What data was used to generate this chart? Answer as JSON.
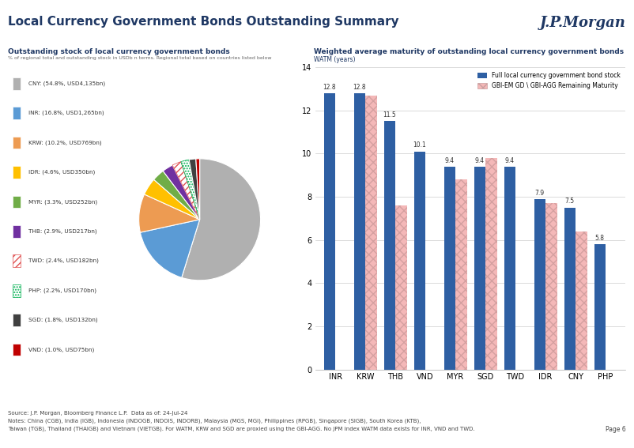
{
  "title": "Local Currency Government Bonds Outstanding Summary",
  "pie_title": "Outstanding stock of local currency government bonds",
  "pie_subtitle": "% of regional total and outstanding stock in USDb n terms. Regional total based on countries listed below",
  "bar_title": "Weighted average maturity of outstanding local currency government bonds",
  "bar_subtitle": "WATM (years)",
  "pie_labels": [
    "CNY: (54.8%, USD4,135bn)",
    "INR: (16.8%, USD1,265bn)",
    "KRW: (10.2%, USD769bn)",
    "IDR: (4.6%, USD350bn)",
    "MYR: (3.3%, USD252bn)",
    "THB: (2.9%, USD217bn)",
    "TWD: (2.4%, USD182bn)",
    "PHP: (2.2%, USD170bn)",
    "SGD: (1.8%, USD132bn)",
    "VND: (1.0%, USD75bn)"
  ],
  "pie_values": [
    54.8,
    16.8,
    10.2,
    4.6,
    3.3,
    2.9,
    2.4,
    2.2,
    1.8,
    1.0
  ],
  "pie_colors": [
    "#b0b0b0",
    "#5b9bd5",
    "#ed9b52",
    "#ffc000",
    "#70ad47",
    "#7030a0",
    "#ffffff",
    "#ffffff",
    "#404040",
    "#c00000"
  ],
  "pie_hatch_colors": [
    "#b0b0b0",
    "#5b9bd5",
    "#ed9b52",
    "#ffc000",
    "#70ad47",
    "#7030a0",
    "#e05050",
    "#00b050",
    "#404040",
    "#c00000"
  ],
  "pie_hatch": [
    null,
    null,
    null,
    null,
    null,
    null,
    "////",
    ".....",
    null,
    null
  ],
  "bar_categories": [
    "INR",
    "KRW",
    "THB",
    "VND",
    "MYR",
    "SGD",
    "TWD",
    "IDR",
    "CNY",
    "PHP"
  ],
  "bar_blue": [
    12.8,
    12.8,
    11.5,
    10.1,
    9.4,
    9.4,
    9.4,
    7.9,
    7.5,
    5.8
  ],
  "bar_pink": [
    null,
    12.7,
    7.6,
    null,
    8.8,
    9.8,
    null,
    7.7,
    6.4,
    null
  ],
  "bar_blue_color": "#2e5fa3",
  "bar_pink_color": "#f4b8b8",
  "bar_ylim": [
    0,
    14
  ],
  "bar_yticks": [
    0,
    2,
    4,
    6,
    8,
    10,
    12,
    14
  ],
  "legend_blue": "Full local currency government bond stock",
  "legend_pink": "GBI-EM GD \\ GBI-AGG Remaining Maturity",
  "footer_source": "Source: J.P. Morgan, Bloomberg Finance L.P.  Data as of: 24-Jul-24",
  "footer_notes": "Notes: China (CGB), India (IGB), Indonesia (INDOGB, INDOIS, INDORB), Malaysia (MGS, MGI), Philippines (RPGB), Singapore (SIGB), South Korea (KTB),",
  "footer_notes2": "Taiwan (TGB), Thailand (THAIGB) and Vietnam (VIETGB). For WATM, KRW and SGD are proxied using the GBI-AGG. No JPM index WATM data exists for INR, VND and TWD.",
  "page_number": "Page 6",
  "jpmorgan_logo": "J.P.Morgan",
  "background_color": "#ffffff"
}
